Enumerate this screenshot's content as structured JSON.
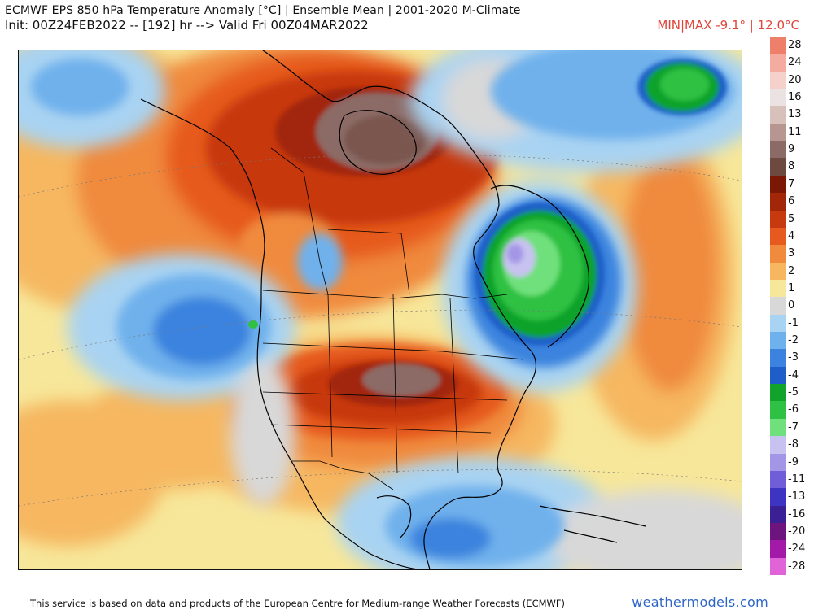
{
  "header": {
    "title": "ECMWF EPS 850 hPa Temperature Anomaly [°C] | Ensemble Mean | 2001-2020 M-Climate",
    "subtitle": "Init: 00Z24FEB2022 -- [192] hr --> Valid Fri 00Z04MAR2022",
    "minmax": "MIN|MAX -9.1° | 12.0°C"
  },
  "colorbar": {
    "labels": [
      "28",
      "24",
      "20",
      "16",
      "13",
      "11",
      "9",
      "8",
      "7",
      "6",
      "5",
      "4",
      "3",
      "2",
      "1",
      "0",
      "-1",
      "-2",
      "-3",
      "-4",
      "-5",
      "-6",
      "-7",
      "-8",
      "-9",
      "-11",
      "-13",
      "-16",
      "-20",
      "-24",
      "-28"
    ],
    "colors": [
      "#ee7f6b",
      "#f4aca0",
      "#f6d0cb",
      "#ebe3e1",
      "#d8c0bb",
      "#b79590",
      "#8c6a65",
      "#6e4940",
      "#7b1705",
      "#a22608",
      "#c7390e",
      "#e65a1f",
      "#f08a3c",
      "#f6b760",
      "#f7e79a",
      "#d8d8d8",
      "#a9d3f2",
      "#6fb1ec",
      "#3b83de",
      "#1f5ec8",
      "#11a32a",
      "#2fc143",
      "#6fe07b",
      "#c7c2ef",
      "#a496e6",
      "#6e5fd9",
      "#3d34c2",
      "#3a1f95",
      "#6d147f",
      "#a41aa8",
      "#e063d8"
    ]
  },
  "footer": {
    "note": "This service is based on data and products of the European Centre for Medium-range Weather Forecasts (ECMWF)",
    "brand": "weathermodels.com"
  },
  "map": {
    "region": "North America",
    "fields": [
      {
        "name": "warm-anomaly-canadian-arctic",
        "value_c": 9
      },
      {
        "name": "warm-anomaly-southern-plains",
        "value_c": 9
      },
      {
        "name": "cold-anomaly-quebec-labrador",
        "value_c": -8
      },
      {
        "name": "cold-anomaly-greenland-sea",
        "value_c": -5
      },
      {
        "name": "cold-anomaly-northeast-pacific",
        "value_c": -3
      },
      {
        "name": "warm-anomaly-north-atlantic",
        "value_c": 5
      }
    ]
  }
}
